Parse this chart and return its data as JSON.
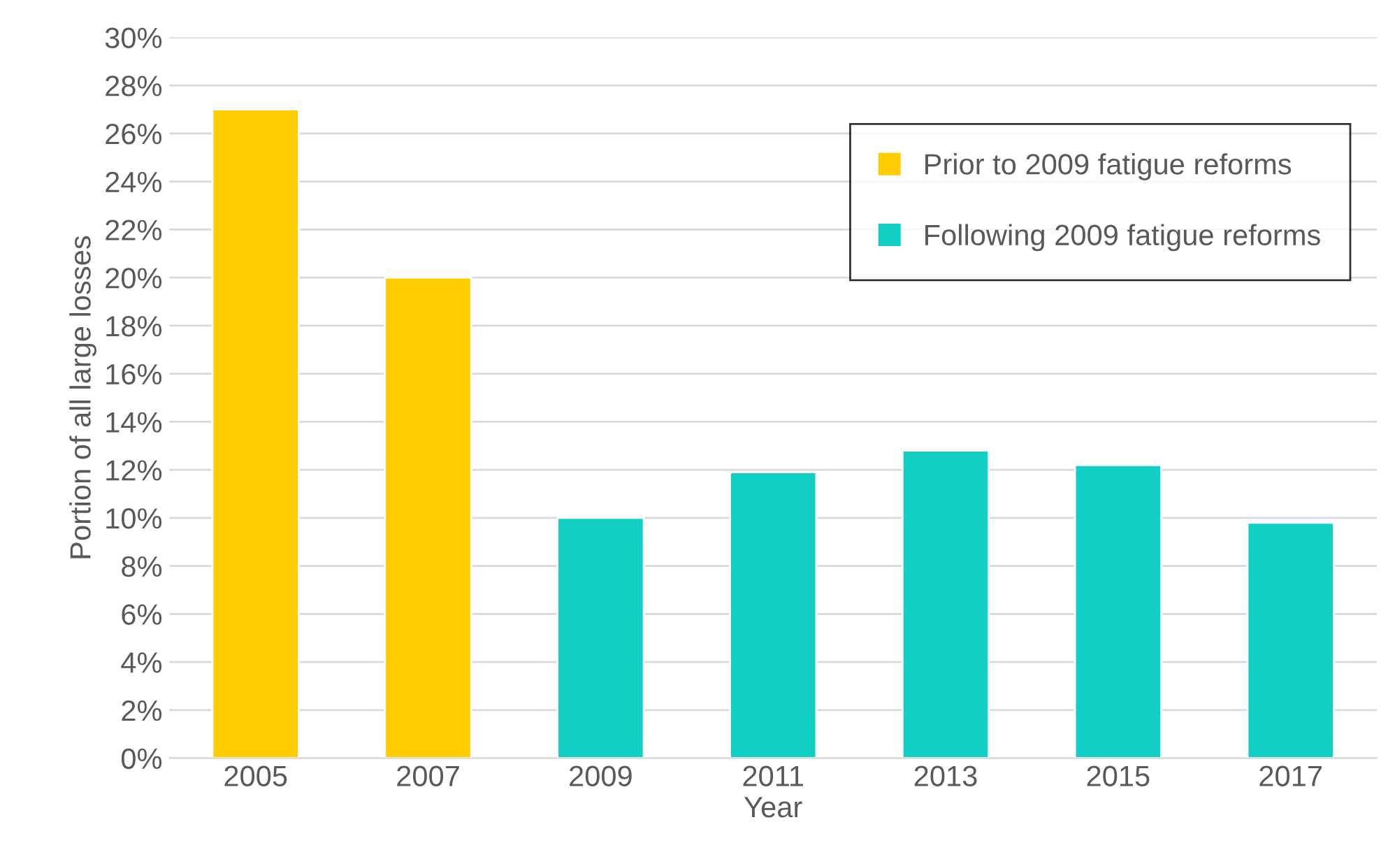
{
  "chart_data": {
    "type": "bar",
    "xlabel": "Year",
    "ylabel": "Portion of all large losses",
    "categories": [
      "2005",
      "2007",
      "2009",
      "2011",
      "2013",
      "2015",
      "2017"
    ],
    "series": [
      {
        "name": "Prior to 2009 fatigue reforms",
        "color": "#ffcc00",
        "values": [
          27,
          20,
          null,
          null,
          null,
          null,
          null
        ]
      },
      {
        "name": "Following 2009 fatigue reforms",
        "color": "#11cfc5",
        "values": [
          null,
          null,
          10,
          11.9,
          12.8,
          12.2,
          9.8
        ]
      }
    ],
    "ylim": [
      0,
      30
    ],
    "yticks": [
      {
        "value": 0,
        "label": "0%"
      },
      {
        "value": 2,
        "label": "2%"
      },
      {
        "value": 4,
        "label": "4%"
      },
      {
        "value": 6,
        "label": "6%"
      },
      {
        "value": 8,
        "label": "8%"
      },
      {
        "value": 10,
        "label": "10%"
      },
      {
        "value": 12,
        "label": "12%"
      },
      {
        "value": 14,
        "label": "14%"
      },
      {
        "value": 16,
        "label": "16%"
      },
      {
        "value": 18,
        "label": "18%"
      },
      {
        "value": 20,
        "label": "20%"
      },
      {
        "value": 22,
        "label": "22%"
      },
      {
        "value": 24,
        "label": "24%"
      },
      {
        "value": 26,
        "label": "26%"
      },
      {
        "value": 28,
        "label": "28%"
      },
      {
        "value": 30,
        "label": "30%"
      }
    ],
    "grid": "y",
    "legend": "top right"
  }
}
